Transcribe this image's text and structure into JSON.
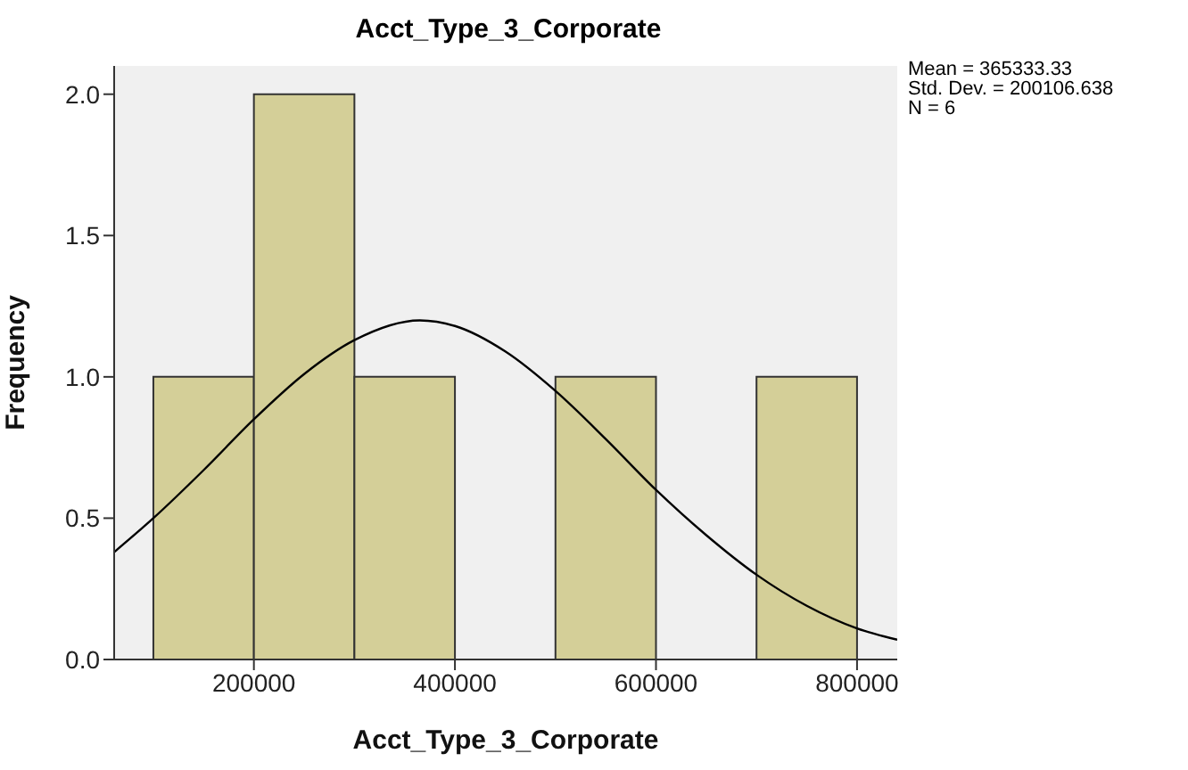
{
  "chart_data": {
    "type": "histogram",
    "title": "Acct_Type_3_Corporate",
    "xlabel": "Acct_Type_3_Corporate",
    "ylabel": "Frequency",
    "annotations": [
      "Mean = 365333.33",
      "Std. Dev. = 200106.638",
      "N = 6"
    ],
    "bins": [
      100000,
      200000,
      300000,
      400000,
      500000,
      600000,
      700000,
      800000
    ],
    "values": [
      1,
      2,
      1,
      0,
      1,
      0,
      1
    ],
    "color": "#d4cf98",
    "series": [
      {
        "type": "line",
        "color": "#000000",
        "x": [
          61000,
          100000,
          150000,
          200000,
          250000,
          300000,
          365000,
          400000,
          450000,
          500000,
          550000,
          600000,
          650000,
          700000,
          750000,
          800000,
          840000
        ],
        "values": [
          0.38,
          0.5,
          0.67,
          0.85,
          1.01,
          1.13,
          1.2,
          1.18,
          1.09,
          0.95,
          0.78,
          0.6,
          0.44,
          0.3,
          0.19,
          0.11,
          0.07
        ]
      }
    ],
    "xlim": [
      61000,
      840000
    ],
    "xticks": [
      200000,
      400000,
      600000,
      800000
    ],
    "ylim": [
      0,
      2.1
    ],
    "yticks": [
      {
        "value": 0,
        "label": "0.0"
      },
      {
        "value": 0.5,
        "label": "0.5"
      },
      {
        "value": 1,
        "label": "1.0"
      },
      {
        "value": 1.5,
        "label": "1.5"
      },
      {
        "value": 2,
        "label": "2.0"
      }
    ]
  }
}
